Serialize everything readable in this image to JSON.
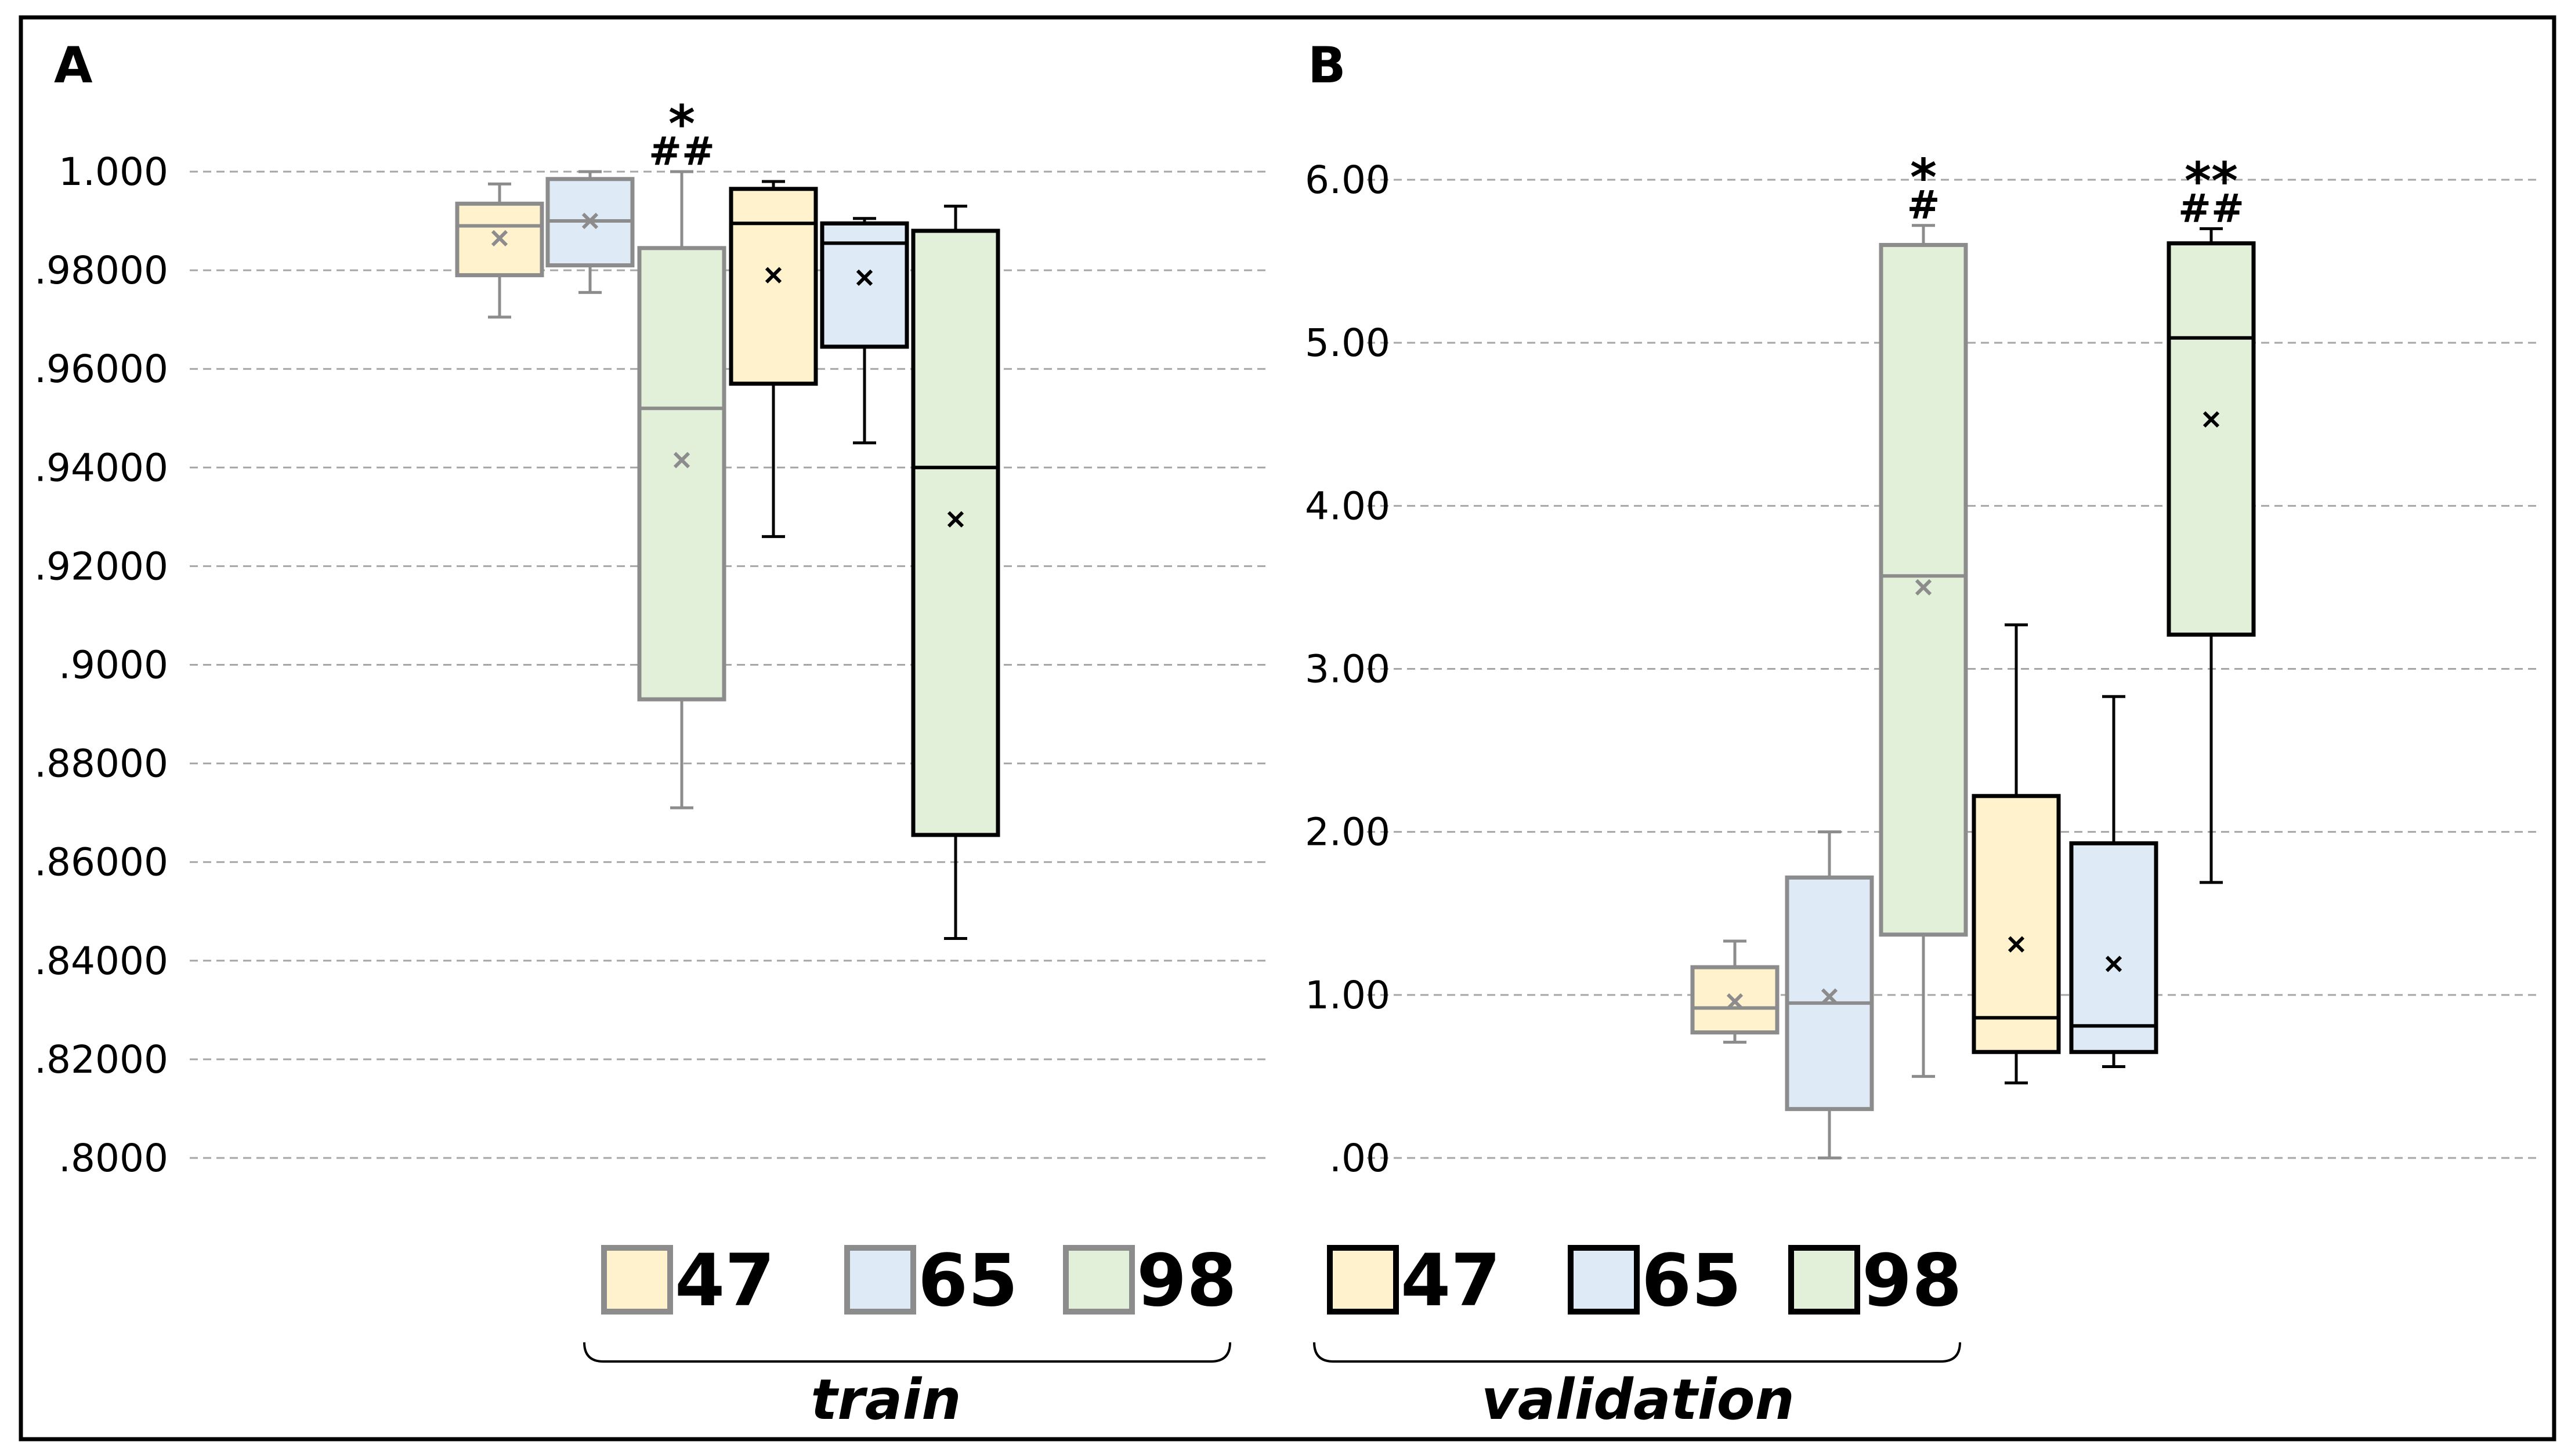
{
  "colors": {
    "fill_47": "#FFF2CC",
    "fill_65": "#DEEBF7",
    "fill_98": "#E2F0D9",
    "train_stroke": "#8C8C8C",
    "validation_stroke": "#000000",
    "grid": "#A6A6A6",
    "frame": "#000000"
  },
  "legend": {
    "train": {
      "items": [
        "47",
        "65",
        "98"
      ],
      "label": "train"
    },
    "validation": {
      "items": [
        "47",
        "65",
        "98"
      ],
      "label": "validation"
    }
  },
  "chart_data": [
    {
      "type": "box",
      "panel_label": "A",
      "ylim": [
        0.8,
        1.0
      ],
      "yticks": [
        1.0,
        0.98,
        0.96,
        0.94,
        0.92,
        0.9,
        0.88,
        0.86,
        0.84,
        0.82,
        0.8
      ],
      "ytick_labels": [
        "1.000",
        ".98000",
        ".96000",
        ".94000",
        ".92000",
        ".9000",
        ".88000",
        ".86000",
        ".84000",
        ".82000",
        ".8000"
      ],
      "grid": true,
      "boxes": [
        {
          "group": "train",
          "size": "47",
          "whisker_low": 0.9705,
          "q1": 0.979,
          "median": 0.989,
          "q3": 0.9935,
          "whisker_high": 0.9975,
          "mean": 0.9865,
          "annotation": []
        },
        {
          "group": "train",
          "size": "65",
          "whisker_low": 0.9755,
          "q1": 0.981,
          "median": 0.99,
          "q3": 0.9985,
          "whisker_high": 1.0,
          "mean": 0.99,
          "annotation": []
        },
        {
          "group": "train",
          "size": "98",
          "whisker_low": 0.871,
          "q1": 0.893,
          "median": 0.952,
          "q3": 0.9845,
          "whisker_high": 1.0,
          "mean": 0.9415,
          "annotation": [
            "*",
            "##"
          ]
        },
        {
          "group": "validation",
          "size": "47",
          "whisker_low": 0.926,
          "q1": 0.957,
          "median": 0.9895,
          "q3": 0.9965,
          "whisker_high": 0.998,
          "mean": 0.979,
          "annotation": []
        },
        {
          "group": "validation",
          "size": "65",
          "whisker_low": 0.945,
          "q1": 0.9645,
          "median": 0.9855,
          "q3": 0.9895,
          "whisker_high": 0.9905,
          "mean": 0.9785,
          "annotation": []
        },
        {
          "group": "validation",
          "size": "98",
          "whisker_low": 0.8445,
          "q1": 0.8655,
          "median": 0.94,
          "q3": 0.988,
          "whisker_high": 0.993,
          "mean": 0.9295,
          "annotation": []
        }
      ]
    },
    {
      "type": "box",
      "panel_label": "B",
      "ylim": [
        0,
        6
      ],
      "yticks": [
        6,
        5,
        4,
        3,
        2,
        1,
        0
      ],
      "ytick_labels": [
        "6.00",
        "5.00",
        "4.00",
        "3.00",
        "2.00",
        "1.00",
        ".00"
      ],
      "grid": true,
      "boxes": [
        {
          "group": "train",
          "size": "47",
          "whisker_low": 0.71,
          "q1": 0.77,
          "median": 0.92,
          "q3": 1.17,
          "whisker_high": 1.33,
          "mean": 0.96,
          "annotation": []
        },
        {
          "group": "train",
          "size": "65",
          "whisker_low": 0.0,
          "q1": 0.3,
          "median": 0.95,
          "q3": 1.72,
          "whisker_high": 2.0,
          "mean": 0.99,
          "annotation": []
        },
        {
          "group": "train",
          "size": "98",
          "whisker_low": 0.5,
          "q1": 1.37,
          "median": 3.57,
          "q3": 5.6,
          "whisker_high": 5.72,
          "mean": 3.5,
          "annotation": [
            "*",
            "#"
          ]
        },
        {
          "group": "validation",
          "size": "47",
          "whisker_low": 0.46,
          "q1": 0.65,
          "median": 0.86,
          "q3": 2.22,
          "whisker_high": 3.27,
          "mean": 1.31,
          "annotation": []
        },
        {
          "group": "validation",
          "size": "65",
          "whisker_low": 0.56,
          "q1": 0.65,
          "median": 0.81,
          "q3": 1.93,
          "whisker_high": 2.83,
          "mean": 1.19,
          "annotation": []
        },
        {
          "group": "validation",
          "size": "98",
          "whisker_low": 1.69,
          "q1": 3.21,
          "median": 5.03,
          "q3": 5.61,
          "whisker_high": 5.7,
          "mean": 4.53,
          "annotation": [
            "**",
            "##"
          ]
        }
      ]
    }
  ]
}
